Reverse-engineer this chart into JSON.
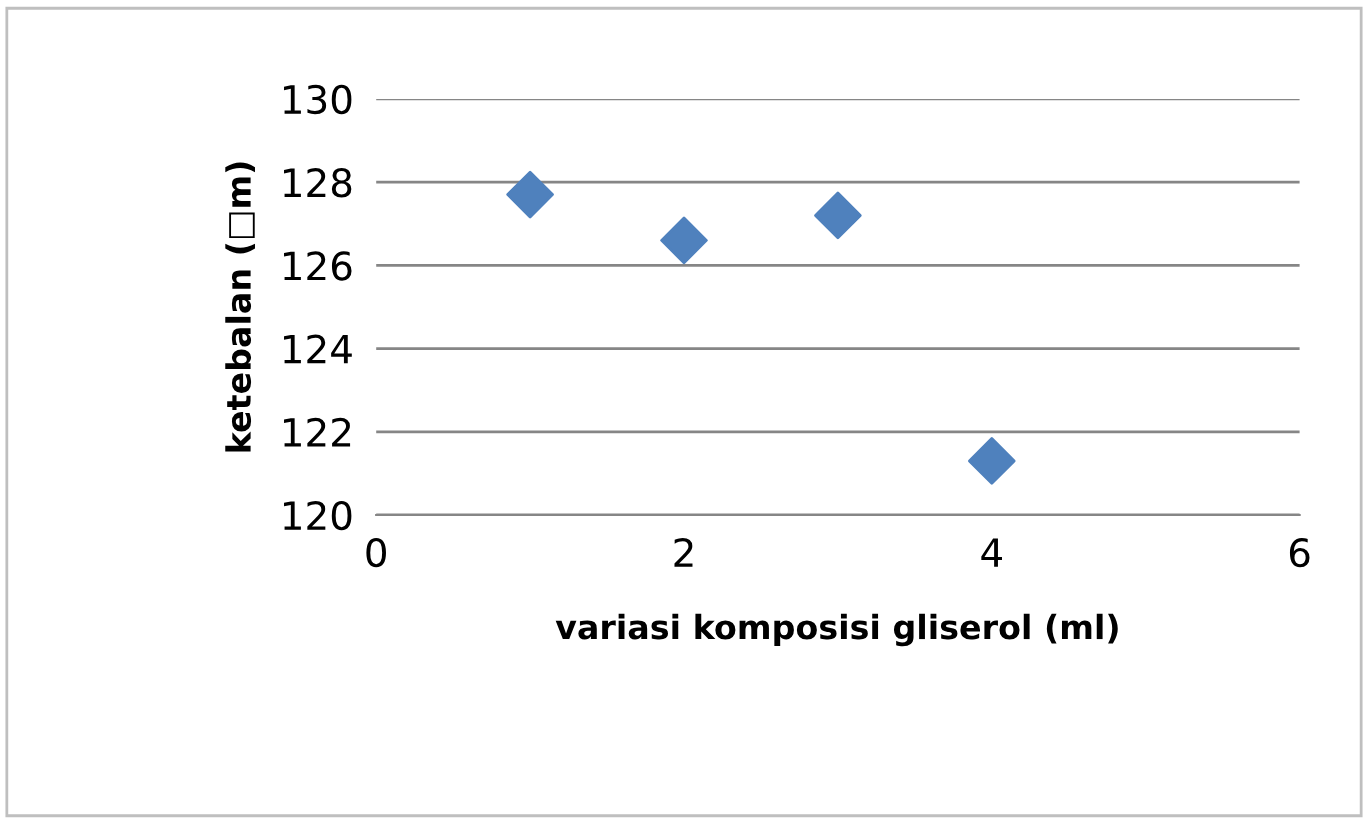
{
  "chart_data": {
    "type": "scatter",
    "xlabel": "variasi komposisi gliserol (ml)",
    "ylabel": "ketebalan (□m)",
    "x": [
      1,
      2,
      3,
      4
    ],
    "series": [
      {
        "color": "#4f81bd",
        "values": [
          127.7,
          126.6,
          127.2,
          121.3
        ]
      }
    ],
    "marker": "diamond",
    "grid": "y",
    "xlim": [
      0,
      6
    ],
    "xticks": [
      0,
      2,
      4,
      6
    ],
    "ylim": [
      120,
      130
    ],
    "yticks": [
      120,
      122,
      124,
      126,
      128,
      130
    ]
  }
}
